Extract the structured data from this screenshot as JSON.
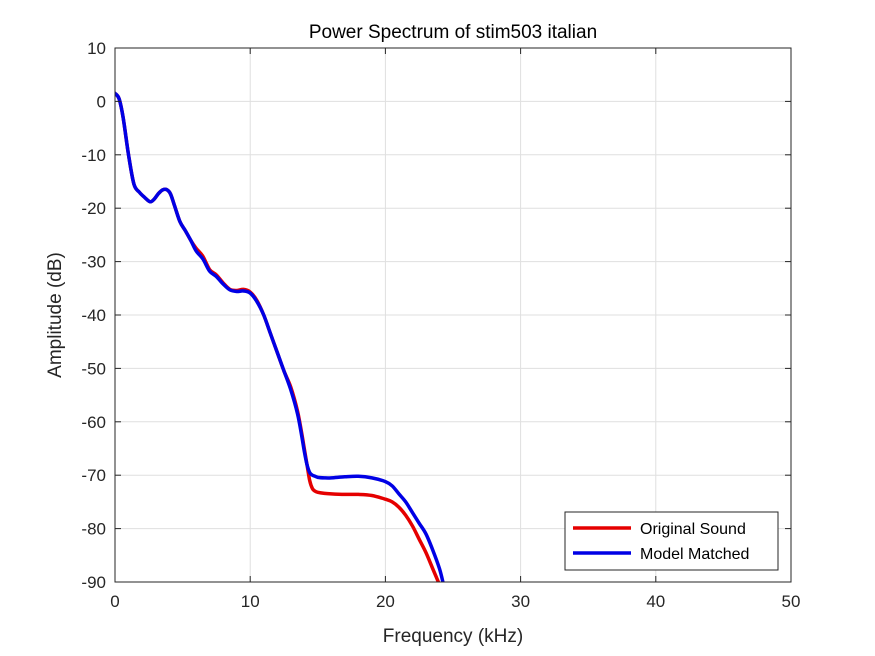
{
  "chart_data": {
    "type": "line",
    "title": "Power Spectrum of stim503 italian",
    "xlabel": "Frequency (kHz)",
    "ylabel": "Amplitude (dB)",
    "xlim": [
      0,
      50
    ],
    "ylim": [
      -90,
      10
    ],
    "xticks": [
      0,
      10,
      20,
      30,
      40,
      50
    ],
    "yticks": [
      10,
      0,
      -10,
      -20,
      -30,
      -40,
      -50,
      -60,
      -70,
      -80,
      -90
    ],
    "grid": true,
    "legend_position": "bottom-right",
    "series": [
      {
        "name": "Original Sound",
        "color": "#e50000",
        "x": [
          0,
          0.3,
          0.6,
          1.0,
          1.4,
          1.8,
          2.2,
          2.6,
          2.9,
          3.2,
          3.5,
          3.8,
          4.1,
          4.4,
          4.8,
          5.2,
          5.6,
          6.0,
          6.5,
          7.0,
          7.5,
          8.0,
          8.5,
          9.0,
          9.5,
          10.0,
          10.5,
          11.0,
          11.5,
          12.0,
          12.5,
          13.0,
          13.5,
          13.8,
          14.0,
          14.2,
          14.4,
          14.6,
          14.8,
          15.0,
          15.5,
          16.0,
          17.0,
          18.0,
          19.0,
          20.0,
          20.5,
          21.0,
          21.5,
          22.0,
          22.5,
          23.0,
          23.5,
          24.0
        ],
        "values": [
          1.5,
          0.5,
          -3,
          -10,
          -15.5,
          -17,
          -18,
          -18.8,
          -18.3,
          -17.3,
          -16.6,
          -16.5,
          -17.3,
          -19.5,
          -22.5,
          -24.2,
          -26,
          -27.5,
          -29,
          -31.5,
          -32.5,
          -34,
          -35.2,
          -35.4,
          -35.2,
          -35.7,
          -37.3,
          -40,
          -43.5,
          -47,
          -50.5,
          -53.5,
          -58,
          -62,
          -65,
          -68,
          -71,
          -72.5,
          -73,
          -73.2,
          -73.4,
          -73.5,
          -73.6,
          -73.6,
          -73.8,
          -74.5,
          -75,
          -76,
          -77.5,
          -79.5,
          -82,
          -84.5,
          -87.5,
          -90.5
        ]
      },
      {
        "name": "Model Matched",
        "color": "#0000e5",
        "x": [
          0,
          0.3,
          0.6,
          1.0,
          1.4,
          1.8,
          2.2,
          2.6,
          2.9,
          3.2,
          3.5,
          3.8,
          4.1,
          4.4,
          4.8,
          5.2,
          5.6,
          6.0,
          6.5,
          7.0,
          7.5,
          8.0,
          8.5,
          9.0,
          9.5,
          10.0,
          10.5,
          11.0,
          11.5,
          12.0,
          12.5,
          13.0,
          13.5,
          13.8,
          14.0,
          14.2,
          14.4,
          14.6,
          14.8,
          15.0,
          15.5,
          16.0,
          17.0,
          18.0,
          19.0,
          20.0,
          20.5,
          21.0,
          21.5,
          22.0,
          22.5,
          23.0,
          23.5,
          24.0,
          24.3
        ],
        "values": [
          1.5,
          0.5,
          -3,
          -10,
          -15.5,
          -17,
          -18,
          -18.8,
          -18.3,
          -17.3,
          -16.6,
          -16.5,
          -17.3,
          -19.5,
          -22.5,
          -24.2,
          -26,
          -28,
          -29.5,
          -31.8,
          -32.8,
          -34.2,
          -35.3,
          -35.6,
          -35.5,
          -35.9,
          -37.5,
          -40,
          -43.5,
          -47,
          -50.5,
          -54,
          -58.5,
          -62.5,
          -65.5,
          -68,
          -69.5,
          -70,
          -70.2,
          -70.4,
          -70.5,
          -70.5,
          -70.3,
          -70.2,
          -70.5,
          -71.2,
          -72,
          -73.5,
          -75,
          -77,
          -79,
          -81,
          -84,
          -87.5,
          -90.5
        ]
      }
    ]
  }
}
